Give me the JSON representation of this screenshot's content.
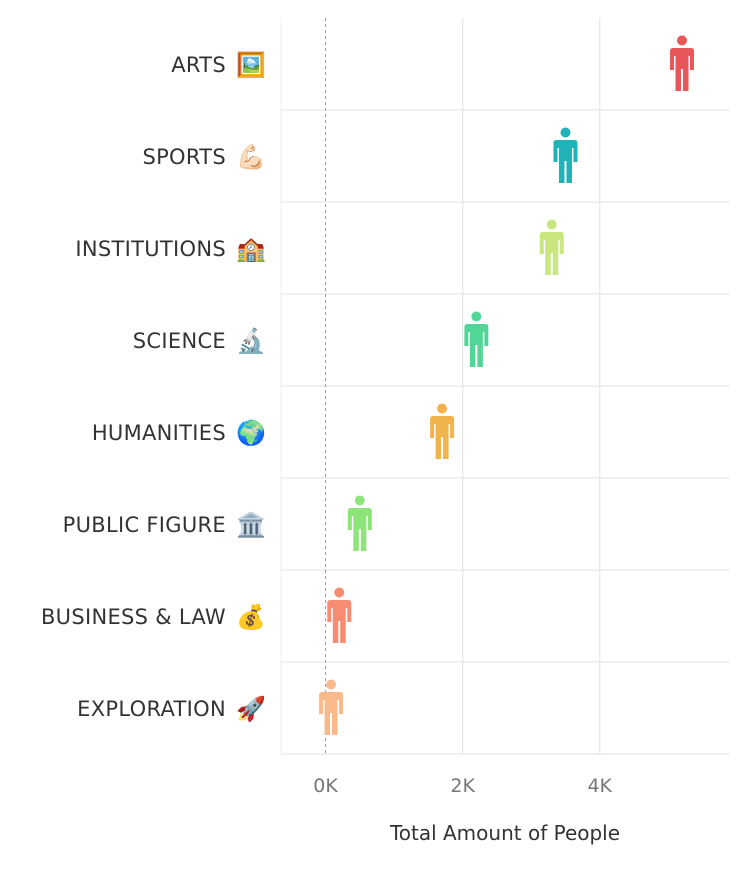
{
  "chart_data": {
    "type": "scatter",
    "marker": "person-icon",
    "categories": [
      "ARTS",
      "SPORTS",
      "INSTITUTIONS",
      "SCIENCE",
      "HUMANITIES",
      "PUBLIC FIGURE",
      "BUSINESS & LAW",
      "EXPLORATION"
    ],
    "category_emoji": [
      "🖼️",
      "💪🏻",
      "🏫",
      "🔬",
      "🌍",
      "🏛️",
      "💰",
      "🚀"
    ],
    "values": [
      5200,
      3500,
      3300,
      2200,
      1700,
      500,
      200,
      80
    ],
    "colors": [
      "#e8565a",
      "#1fb3b8",
      "#c9e67f",
      "#52d697",
      "#f1b44c",
      "#8de57a",
      "#f68d72",
      "#f9b98a"
    ],
    "xticks": [
      0,
      2000,
      4000
    ],
    "xtick_labels": [
      "0K",
      "2K",
      "4K"
    ],
    "xlim": [
      -650,
      5900
    ],
    "xlabel": "Total Amount of People",
    "ylabel": "",
    "title": "",
    "reference_line": 0,
    "grid": true,
    "legend": "none"
  }
}
